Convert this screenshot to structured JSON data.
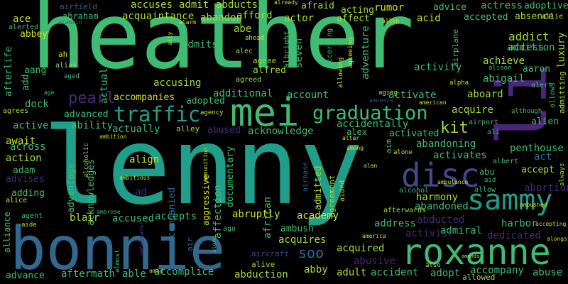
{
  "palette": {
    "background": "#000000",
    "green": "#3fbc73",
    "teal": "#1f9e89",
    "blue": "#31688e",
    "purple": "#482878",
    "lime": "#a2da37",
    "yellow": "#cde11d",
    "indigo": "#3e4a89"
  },
  "words": [
    "heather",
    "lenny",
    "bonnie",
    "li",
    "mei",
    "roxanne",
    "disc",
    "sammy",
    "graduation",
    "traffic",
    "pearl",
    "kit",
    "soo",
    "abby",
    "airfield",
    "accuses",
    "admit",
    "abducts",
    "already",
    "afraid",
    "actor",
    "rumor",
    "advice",
    "actress",
    "adoptive",
    "abraham",
    "acquaintance",
    "abandon",
    "afford",
    "acting",
    "acid",
    "accepted",
    "absence",
    "allie",
    "ace",
    "alamein",
    "alarm",
    "abe",
    "affect",
    "allen",
    "airplane",
    "addict",
    "access",
    "alerted",
    "abbey",
    "ally",
    "ahead",
    "seven",
    "adventure",
    "according",
    "activity",
    "addition",
    "afterlife",
    "ah",
    "alias",
    "admits",
    "alec",
    "agree",
    "albright",
    "allowing",
    "agreeing",
    "achieve",
    "aaron",
    "aang",
    "alfred",
    "luxury",
    "alison",
    "aged",
    "age",
    "agreed",
    "aging",
    "alpha",
    "abigail",
    "alert",
    "accusing",
    "actual",
    "add",
    "admitting",
    "allows",
    "additional",
    "account",
    "activate",
    "aboard",
    "advanced",
    "accompanies",
    "adopted",
    "acquire",
    "dock",
    "agrees",
    "agency",
    "although",
    "alien",
    "active",
    "ability",
    "actually",
    "alley",
    "abused",
    "acknowledge",
    "alex",
    "ali",
    "airport",
    "ambition",
    "activated",
    "await",
    "alcoholic",
    "accidentally",
    "across",
    "abandoning",
    "penthouse",
    "action",
    "align",
    "ambitious",
    "activates",
    "act",
    "albert",
    "adam",
    "advantage",
    "abu",
    "accept",
    "advises",
    "acknowledges",
    "accompanied",
    "aid",
    "always",
    "adding",
    "ad",
    "abortion",
    "alice",
    "aggressive",
    "harmony",
    "allow",
    "ambulance",
    "ambushed",
    "agent",
    "affection",
    "african",
    "alcohol",
    "abandoned",
    "alliance",
    "blair",
    "accused",
    "accepts",
    "abruptly",
    "academy",
    "afterwards",
    "ambrose",
    "aide",
    "abducted",
    "harbor",
    "ambush",
    "address",
    "accepting",
    "admiral",
    "activist",
    "dedicated",
    "ambassador",
    "almost",
    "ago",
    "admitted",
    "agreement",
    "aided",
    "air",
    "along",
    "acquires",
    "america",
    "amends",
    "allowed",
    "aircraft",
    "acquired",
    "abusive",
    "accompany",
    "advance",
    "aftermath",
    "able",
    "accomplice",
    "amid",
    "abduction",
    "alive",
    "adult",
    "accident",
    "also",
    "adopt",
    "abuse",
    "amnesia",
    "american",
    "altar",
    "among",
    "alone",
    "aim",
    "alan",
    "alongside",
    "airbase",
    "documentary",
    "ammunition"
  ]
}
